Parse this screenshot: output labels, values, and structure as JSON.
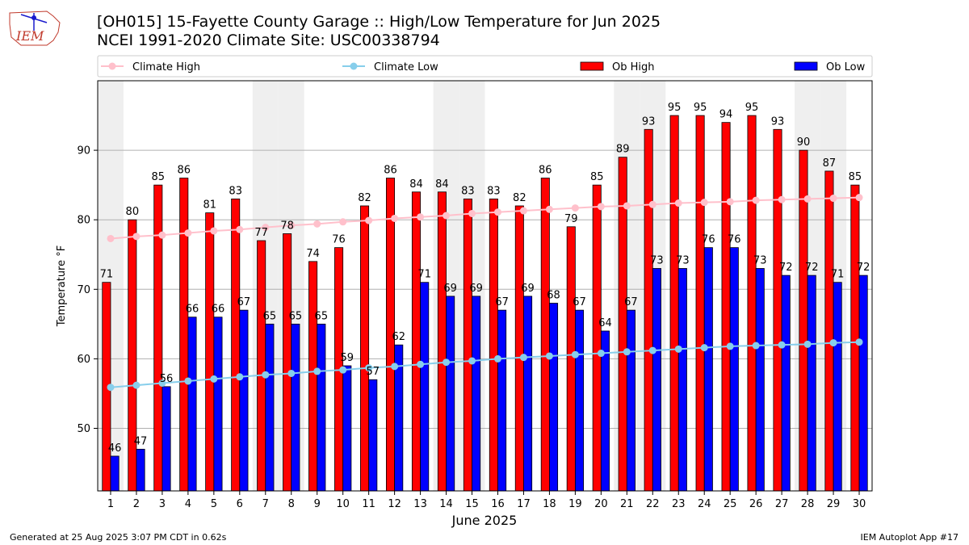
{
  "header": {
    "title_line1": "[OH015] 15-Fayette County Garage :: High/Low Temperature for Jun 2025",
    "title_line2": "NCEI 1991-2020 Climate Site: USC00338794",
    "logo_text": "IEM"
  },
  "footer": {
    "generated": "Generated at 25 Aug 2025 3:07 PM CDT in 0.62s",
    "app": "IEM Autoplot App #17"
  },
  "colors": {
    "ob_high": "#ff0000",
    "ob_low": "#0000ff",
    "climate_high": "#ffc0cb",
    "climate_low": "#87ceeb",
    "weekend_shade": "#efefef",
    "grid": "#b0b0b0"
  },
  "chart_data": {
    "type": "bar",
    "xlabel": "June 2025",
    "ylabel": "Temperature °F",
    "ylim": [
      41,
      100
    ],
    "yticks": [
      50,
      60,
      70,
      80,
      90
    ],
    "grid": "horizontal",
    "legend": "top",
    "shaded_days": [
      1,
      7,
      8,
      14,
      15,
      21,
      22,
      28,
      29
    ],
    "x": [
      1,
      2,
      3,
      4,
      5,
      6,
      7,
      8,
      9,
      10,
      11,
      12,
      13,
      14,
      15,
      16,
      17,
      18,
      19,
      20,
      21,
      22,
      23,
      24,
      25,
      26,
      27,
      28,
      29,
      30
    ],
    "series": [
      {
        "name": "Climate High",
        "kind": "line",
        "values": [
          77.3,
          77.6,
          77.8,
          78.1,
          78.4,
          78.6,
          78.9,
          79.2,
          79.4,
          79.7,
          79.9,
          80.2,
          80.4,
          80.6,
          80.9,
          81.1,
          81.3,
          81.5,
          81.7,
          81.9,
          82.0,
          82.2,
          82.4,
          82.5,
          82.6,
          82.8,
          82.9,
          83.0,
          83.1,
          83.2
        ]
      },
      {
        "name": "Climate Low",
        "kind": "line",
        "values": [
          55.9,
          56.2,
          56.5,
          56.8,
          57.1,
          57.4,
          57.7,
          57.9,
          58.2,
          58.4,
          58.7,
          58.9,
          59.2,
          59.5,
          59.7,
          60.0,
          60.2,
          60.4,
          60.6,
          60.8,
          61.0,
          61.2,
          61.4,
          61.6,
          61.8,
          61.9,
          62.0,
          62.1,
          62.3,
          62.4
        ]
      },
      {
        "name": "Ob High",
        "kind": "bar",
        "values": [
          71,
          80,
          85,
          86,
          81,
          83,
          77,
          78,
          74,
          76,
          82,
          86,
          84,
          84,
          83,
          83,
          82,
          86,
          79,
          85,
          89,
          93,
          95,
          95,
          94,
          95,
          93,
          90,
          87,
          85
        ]
      },
      {
        "name": "Ob Low",
        "kind": "bar",
        "values": [
          46,
          47,
          56,
          66,
          66,
          67,
          65,
          65,
          65,
          59,
          57,
          62,
          71,
          69,
          69,
          67,
          69,
          68,
          67,
          64,
          67,
          73,
          73,
          76,
          76,
          73,
          72,
          72,
          71,
          72
        ]
      }
    ]
  }
}
